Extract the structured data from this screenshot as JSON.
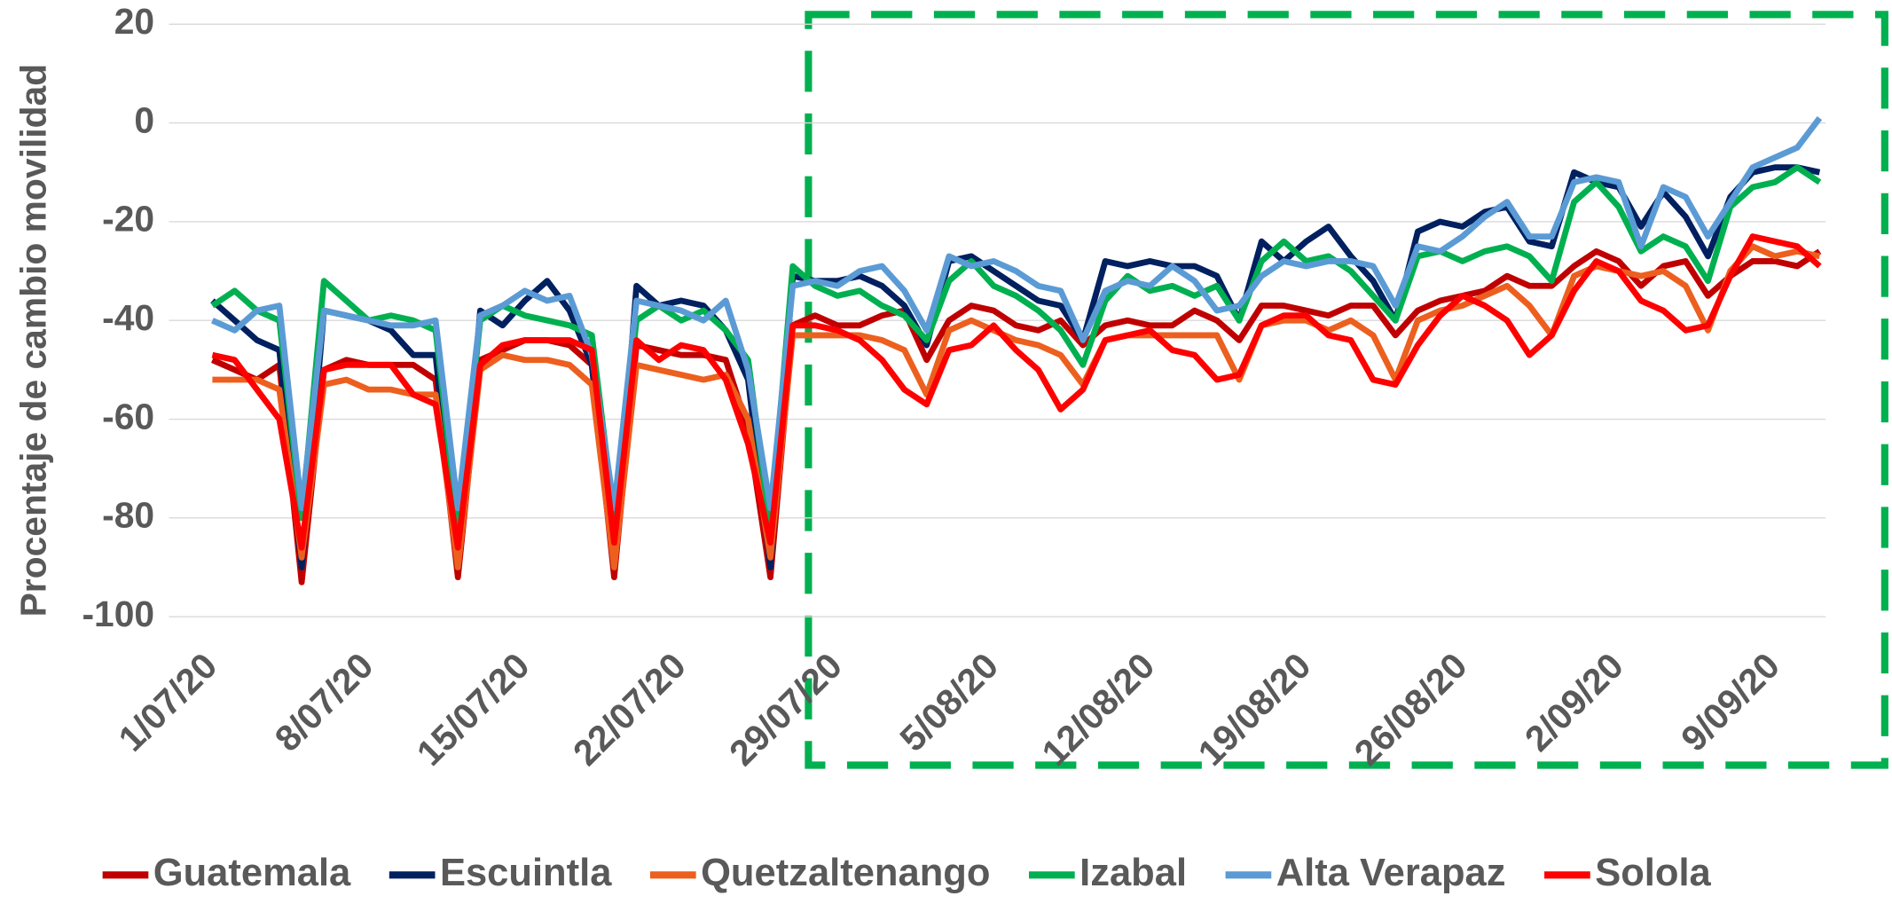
{
  "chart_data": {
    "type": "line",
    "y_label": "Procentaje de cambio movilidad",
    "categories": [
      "1/07/20",
      null,
      null,
      null,
      null,
      null,
      null,
      "8/07/20",
      null,
      null,
      null,
      null,
      null,
      null,
      "15/07/20",
      null,
      null,
      null,
      null,
      null,
      null,
      "22/07/20",
      null,
      null,
      null,
      null,
      null,
      null,
      "29/07/20",
      null,
      null,
      null,
      null,
      null,
      null,
      "5/08/20",
      null,
      null,
      null,
      null,
      null,
      null,
      "12/08/20",
      null,
      null,
      null,
      null,
      null,
      null,
      "19/08/20",
      null,
      null,
      null,
      null,
      null,
      null,
      "26/08/20",
      null,
      null,
      null,
      null,
      null,
      null,
      "2/09/20",
      null,
      null,
      null,
      null,
      null,
      null,
      "9/09/20",
      null,
      null
    ],
    "ylim": [
      -100,
      20
    ],
    "yticks": [
      -100,
      -80,
      -60,
      -40,
      -20,
      0,
      20
    ],
    "grid": true,
    "legend": "bottom",
    "series": [
      {
        "name": "Guatemala",
        "color": "#c00000",
        "values": [
          -48,
          -50,
          -52,
          -49,
          -93,
          -50,
          -48,
          -49,
          -49,
          -49,
          -52,
          -92,
          -48,
          -46,
          -44,
          -44,
          -45,
          -49,
          -92,
          -45,
          -46,
          -47,
          -47,
          -48,
          -62,
          -92,
          -41,
          -39,
          -41,
          -41,
          -39,
          -38,
          -48,
          -40,
          -37,
          -38,
          -41,
          -42,
          -40,
          -45,
          -41,
          -40,
          -41,
          -41,
          -38,
          -40,
          -44,
          -37,
          -37,
          -38,
          -39,
          -37,
          -37,
          -43,
          -38,
          -36,
          -35,
          -34,
          -31,
          -33,
          -33,
          -29,
          -26,
          -28,
          -33,
          -29,
          -28,
          -35,
          -31,
          -28,
          -28,
          -29,
          -26
        ]
      },
      {
        "name": "Escuintla",
        "color": "#002060",
        "values": [
          -36,
          -40,
          -44,
          -46,
          -90,
          -38,
          -39,
          -40,
          -42,
          -47,
          -47,
          -90,
          -38,
          -41,
          -36,
          -32,
          -38,
          -49,
          -90,
          -33,
          -37,
          -36,
          -37,
          -42,
          -52,
          -90,
          -31,
          -32,
          -32,
          -31,
          -33,
          -37,
          -45,
          -28,
          -27,
          -30,
          -33,
          -36,
          -37,
          -44,
          -28,
          -29,
          -28,
          -29,
          -29,
          -31,
          -40,
          -24,
          -28,
          -24,
          -21,
          -27,
          -32,
          -40,
          -22,
          -20,
          -21,
          -18,
          -17,
          -24,
          -25,
          -10,
          -12,
          -13,
          -21,
          -14,
          -19,
          -27,
          -15,
          -10,
          -9,
          -9,
          -10
        ]
      },
      {
        "name": "Quetzaltenango",
        "color": "#ed5f1e",
        "values": [
          -52,
          -52,
          -52,
          -54,
          -88,
          -53,
          -52,
          -54,
          -54,
          -55,
          -55,
          -90,
          -50,
          -47,
          -48,
          -48,
          -49,
          -53,
          -90,
          -49,
          -50,
          -51,
          -52,
          -51,
          -60,
          -88,
          -43,
          -43,
          -43,
          -43,
          -44,
          -46,
          -55,
          -42,
          -40,
          -42,
          -44,
          -45,
          -47,
          -53,
          -44,
          -43,
          -43,
          -43,
          -43,
          -43,
          -52,
          -41,
          -40,
          -40,
          -42,
          -40,
          -43,
          -52,
          -40,
          -38,
          -37,
          -35,
          -33,
          -37,
          -43,
          -31,
          -29,
          -30,
          -31,
          -30,
          -33,
          -42,
          -30,
          -25,
          -27,
          -26,
          -27
        ]
      },
      {
        "name": "Izabal",
        "color": "#00b050",
        "values": [
          -37,
          -34,
          -38,
          -40,
          -80,
          -32,
          -36,
          -40,
          -39,
          -40,
          -42,
          -82,
          -40,
          -37,
          -39,
          -40,
          -41,
          -43,
          -80,
          -40,
          -37,
          -40,
          -38,
          -42,
          -48,
          -82,
          -29,
          -33,
          -35,
          -34,
          -37,
          -39,
          -44,
          -32,
          -28,
          -33,
          -35,
          -38,
          -42,
          -49,
          -36,
          -31,
          -34,
          -33,
          -35,
          -33,
          -40,
          -28,
          -24,
          -28,
          -27,
          -30,
          -35,
          -40,
          -27,
          -26,
          -28,
          -26,
          -25,
          -27,
          -32,
          -16,
          -12,
          -17,
          -26,
          -23,
          -25,
          -32,
          -17,
          -13,
          -12,
          -9,
          -12
        ]
      },
      {
        "name": "Alta Verapaz",
        "color": "#5b9bd5",
        "values": [
          -40,
          -42,
          -38,
          -37,
          -78,
          -38,
          -39,
          -40,
          -41,
          -41,
          -40,
          -78,
          -39,
          -37,
          -34,
          -36,
          -35,
          -47,
          -78,
          -36,
          -37,
          -38,
          -40,
          -36,
          -50,
          -78,
          -33,
          -32,
          -33,
          -30,
          -29,
          -34,
          -42,
          -27,
          -29,
          -28,
          -30,
          -33,
          -34,
          -44,
          -34,
          -32,
          -33,
          -29,
          -32,
          -38,
          -37,
          -31,
          -28,
          -29,
          -28,
          -28,
          -29,
          -37,
          -25,
          -26,
          -23,
          -19,
          -16,
          -23,
          -23,
          -12,
          -11,
          -12,
          -25,
          -13,
          -15,
          -23,
          -16,
          -9,
          -7,
          -5,
          1
        ]
      },
      {
        "name": "Solola",
        "color": "#ff0000",
        "values": [
          -47,
          -48,
          -54,
          -60,
          -86,
          -50,
          -49,
          -49,
          -49,
          -55,
          -57,
          -86,
          -49,
          -45,
          -44,
          -44,
          -44,
          -46,
          -85,
          -44,
          -48,
          -45,
          -46,
          -52,
          -65,
          -85,
          -41,
          -41,
          -42,
          -44,
          -48,
          -54,
          -57,
          -46,
          -45,
          -41,
          -46,
          -50,
          -58,
          -54,
          -44,
          -43,
          -42,
          -46,
          -47,
          -52,
          -51,
          -41,
          -39,
          -39,
          -43,
          -44,
          -52,
          -53,
          -45,
          -39,
          -35,
          -37,
          -40,
          -47,
          -43,
          -34,
          -28,
          -30,
          -36,
          -38,
          -42,
          -41,
          -31,
          -23,
          -24,
          -25,
          -29
        ]
      }
    ]
  }
}
